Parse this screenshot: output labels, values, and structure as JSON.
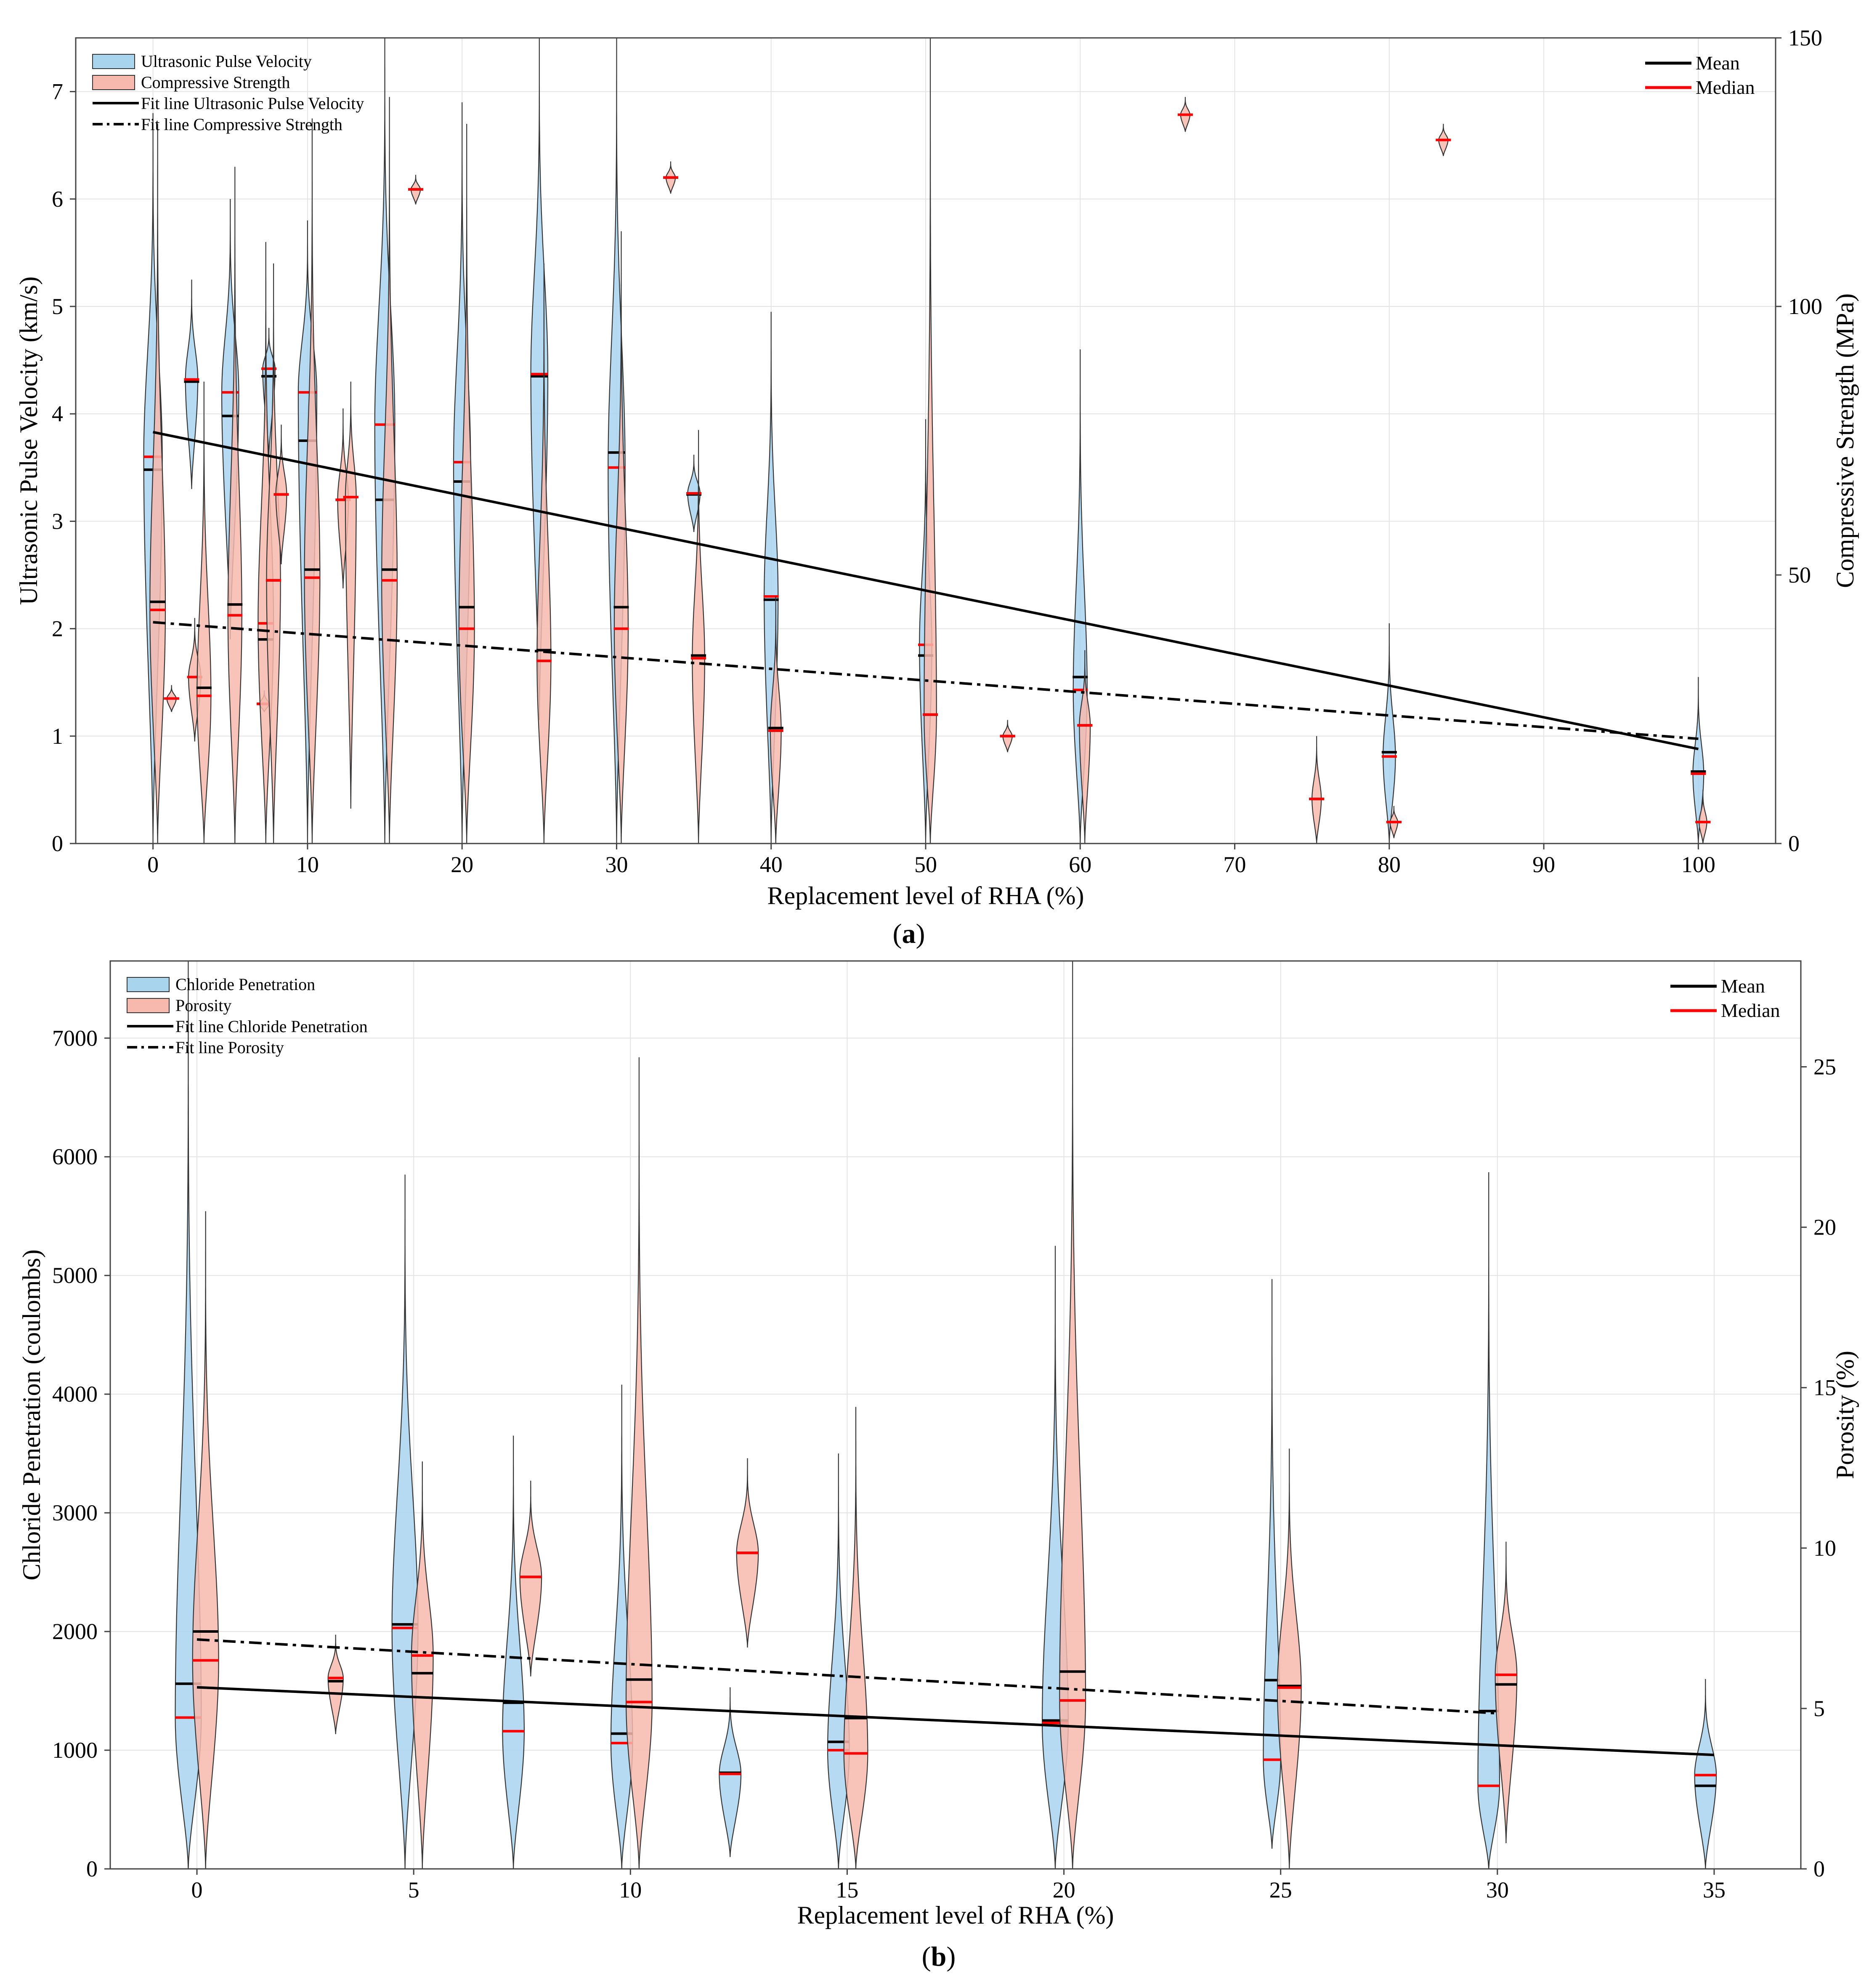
{
  "colors": {
    "blue": "#a9d4ee",
    "red": "#f7b9ad",
    "mean": "#000000",
    "median": "#ff0000",
    "outline": "#333333"
  },
  "chart_data": [
    {
      "type": "violin",
      "panel_label": "a",
      "xlabel": "Replacement level of RHA (%)",
      "ylabel_left": "Ultrasonic Pulse Velocity (km/s)",
      "ylabel_right": "Compressive Strength (MPa)",
      "xlim": [
        -5,
        105
      ],
      "xticks": [
        0,
        10,
        20,
        30,
        40,
        50,
        60,
        70,
        80,
        90,
        100
      ],
      "ylim_left": [
        0,
        7.5
      ],
      "yticks_left": [
        0,
        1,
        2,
        3,
        4,
        5,
        6,
        7
      ],
      "ylim_right": [
        0,
        150
      ],
      "yticks_right": [
        0,
        50,
        100,
        150
      ],
      "legend_left": [
        "Ultrasonic Pulse Velocity",
        "Compressive Strength",
        "Fit line Ultrasonic Pulse Velocity",
        "Fit line Compressive Strength"
      ],
      "legend_right": [
        "Mean",
        "Median"
      ],
      "series": [
        {
          "name": "Ultrasonic Pulse Velocity",
          "axis": "left",
          "color": "blue",
          "violins": [
            {
              "x": 0,
              "min": 0,
              "max": 6.8,
              "mean": 3.48,
              "median": 3.6,
              "width": 1.2
            },
            {
              "x": 2.5,
              "min": 3.3,
              "max": 5.25,
              "mean": 4.3,
              "median": 4.32,
              "width": 0.8
            },
            {
              "x": 5,
              "min": 1.9,
              "max": 6.0,
              "mean": 3.98,
              "median": 4.2,
              "width": 1.1
            },
            {
              "x": 7.5,
              "min": 3.6,
              "max": 4.8,
              "mean": 4.35,
              "median": 4.42,
              "width": 0.8
            },
            {
              "x": 10,
              "min": 0,
              "max": 5.8,
              "mean": 3.75,
              "median": 4.2,
              "width": 1.2
            },
            {
              "x": 15,
              "min": 0,
              "max": 7.5,
              "mean": 3.2,
              "median": 3.9,
              "width": 1.3
            },
            {
              "x": 20,
              "min": 0,
              "max": 6.9,
              "mean": 3.37,
              "median": 3.55,
              "width": 1.1
            },
            {
              "x": 25,
              "min": 1.15,
              "max": 7.5,
              "mean": 4.35,
              "median": 4.37,
              "width": 1.1
            },
            {
              "x": 30,
              "min": 0,
              "max": 7.5,
              "mean": 3.64,
              "median": 3.5,
              "width": 1.1
            },
            {
              "x": 35,
              "min": 2.9,
              "max": 3.62,
              "mean": 3.25,
              "median": 3.26,
              "width": 0.8
            },
            {
              "x": 40,
              "min": 0,
              "max": 4.95,
              "mean": 2.27,
              "median": 2.3,
              "width": 0.9
            },
            {
              "x": 50,
              "min": 0,
              "max": 3.95,
              "mean": 1.75,
              "median": 1.85,
              "width": 0.8
            },
            {
              "x": 60,
              "min": 0,
              "max": 4.6,
              "mean": 1.55,
              "median": 1.43,
              "width": 0.9
            },
            {
              "x": 80,
              "min": 0,
              "max": 2.05,
              "mean": 0.85,
              "median": 0.81,
              "width": 0.8
            },
            {
              "x": 100,
              "min": 0,
              "max": 1.55,
              "mean": 0.67,
              "median": 0.65,
              "width": 0.7
            }
          ]
        },
        {
          "name": "Compressive Strength",
          "axis": "right",
          "color": "red",
          "violins": [
            {
              "x": 0.3,
              "min": 0,
              "max": 134,
              "mean": 45,
              "median": 43.5,
              "width": 1.0
            },
            {
              "x": 1.2,
              "min": 24.5,
              "max": 29.5,
              "mean": 27,
              "median": 27,
              "width": 0.6
            },
            {
              "x": 2.7,
              "min": 19,
              "max": 42,
              "mean": 31,
              "median": 31,
              "width": 0.8
            },
            {
              "x": 3.3,
              "min": 0,
              "max": 86,
              "mean": 29,
              "median": 27.5,
              "width": 0.9
            },
            {
              "x": 5.3,
              "min": 0,
              "max": 126,
              "mean": 44.5,
              "median": 42.5,
              "width": 0.9
            },
            {
              "x": 7.2,
              "min": 24.5,
              "max": 28.5,
              "mean": 26,
              "median": 26,
              "width": 0.6
            },
            {
              "x": 7.3,
              "min": 0,
              "max": 112,
              "mean": 38,
              "median": 41,
              "width": 1.0
            },
            {
              "x": 7.8,
              "min": 0,
              "max": 108,
              "mean": 49,
              "median": 49,
              "width": 0.9
            },
            {
              "x": 8.3,
              "min": 52,
              "max": 78,
              "mean": 65,
              "median": 65,
              "width": 0.7
            },
            {
              "x": 10.3,
              "min": 0,
              "max": 135,
              "mean": 51,
              "median": 49.5,
              "width": 1.0
            },
            {
              "x": 12.3,
              "min": 47.5,
              "max": 81,
              "mean": 64,
              "median": 64,
              "width": 0.7
            },
            {
              "x": 12.8,
              "min": 6.5,
              "max": 86,
              "mean": 64.5,
              "median": 64.5,
              "width": 0.7
            },
            {
              "x": 15.3,
              "min": 0,
              "max": 139,
              "mean": 51,
              "median": 49,
              "width": 1.0
            },
            {
              "x": 17,
              "min": 119,
              "max": 124.5,
              "mean": 121.8,
              "median": 121.8,
              "width": 0.6
            },
            {
              "x": 20.3,
              "min": 0,
              "max": 134,
              "mean": 44,
              "median": 40,
              "width": 1.0
            },
            {
              "x": 25.3,
              "min": 0,
              "max": 108,
              "mean": 36,
              "median": 34,
              "width": 0.9
            },
            {
              "x": 30.3,
              "min": 0,
              "max": 114,
              "mean": 44,
              "median": 40,
              "width": 0.9
            },
            {
              "x": 33.5,
              "min": 121,
              "max": 127,
              "mean": 124,
              "median": 124,
              "width": 0.6
            },
            {
              "x": 35.3,
              "min": 0,
              "max": 77,
              "mean": 35,
              "median": 34.5,
              "width": 0.8
            },
            {
              "x": 40.3,
              "min": 0,
              "max": 46,
              "mean": 21.5,
              "median": 21,
              "width": 0.7
            },
            {
              "x": 50.3,
              "min": 0,
              "max": 150,
              "mean": 24,
              "median": 24,
              "width": 0.8
            },
            {
              "x": 55.3,
              "min": 17,
              "max": 23,
              "mean": 20,
              "median": 20,
              "width": 0.6
            },
            {
              "x": 60.3,
              "min": 0,
              "max": 36,
              "mean": 22,
              "median": 22,
              "width": 0.7
            },
            {
              "x": 66.8,
              "min": 132.5,
              "max": 139,
              "mean": 135.7,
              "median": 135.7,
              "width": 0.6
            },
            {
              "x": 75.3,
              "min": 0,
              "max": 20,
              "mean": 8.3,
              "median": 8.3,
              "width": 0.6
            },
            {
              "x": 80.3,
              "min": 1,
              "max": 7,
              "mean": 4,
              "median": 4,
              "width": 0.5
            },
            {
              "x": 83.5,
              "min": 128,
              "max": 134,
              "mean": 131,
              "median": 131,
              "width": 0.6
            },
            {
              "x": 100.3,
              "min": 0,
              "max": 10,
              "mean": 4,
              "median": 4,
              "width": 0.5
            }
          ]
        }
      ],
      "fit_lines": [
        {
          "name": "Fit line Ultrasonic Pulse Velocity",
          "axis": "left",
          "style": "solid",
          "x": [
            0,
            100
          ],
          "y": [
            3.83,
            0.88
          ]
        },
        {
          "name": "Fit line Compressive Strength",
          "axis": "right",
          "style": "dashdot",
          "x": [
            0,
            100
          ],
          "y": [
            41.2,
            19.5
          ]
        }
      ]
    },
    {
      "type": "violin",
      "panel_label": "b",
      "xlabel": "Replacement level of RHA (%)",
      "ylabel_left": "Chloride Penetration (coulombs)",
      "ylabel_right": "Porosity (%)",
      "xlim": [
        -2,
        37
      ],
      "xticks": [
        0,
        5,
        10,
        15,
        20,
        25,
        30,
        35
      ],
      "ylim_left": [
        0,
        7650
      ],
      "yticks_left": [
        0,
        1000,
        2000,
        3000,
        4000,
        5000,
        6000,
        7000
      ],
      "ylim_right": [
        0,
        28.3
      ],
      "yticks_right": [
        0,
        5,
        10,
        15,
        20,
        25
      ],
      "legend_left": [
        "Chloride Penetration",
        "Porosity",
        "Fit line Chloride Penetration",
        "Fit line Porosity"
      ],
      "legend_right": [
        "Mean",
        "Median"
      ],
      "series": [
        {
          "name": "Chloride Penetration",
          "axis": "left",
          "color": "blue",
          "violins": [
            {
              "x": -0.2,
              "min": 0,
              "max": 7650,
              "mean": 1560,
              "median": 1275,
              "width": 0.6
            },
            {
              "x": 4.8,
              "min": 0,
              "max": 5850,
              "mean": 2060,
              "median": 2030,
              "width": 0.6
            },
            {
              "x": 7.3,
              "min": 0,
              "max": 3650,
              "mean": 1400,
              "median": 1160,
              "width": 0.5
            },
            {
              "x": 9.8,
              "min": 0,
              "max": 4080,
              "mean": 1140,
              "median": 1060,
              "width": 0.5
            },
            {
              "x": 12.3,
              "min": 100,
              "max": 1530,
              "mean": 810,
              "median": 800,
              "width": 0.5
            },
            {
              "x": 14.8,
              "min": 0,
              "max": 3500,
              "mean": 1070,
              "median": 1000,
              "width": 0.5
            },
            {
              "x": 19.8,
              "min": 0,
              "max": 5250,
              "mean": 1250,
              "median": 1230,
              "width": 0.6
            },
            {
              "x": 24.8,
              "min": 170,
              "max": 4970,
              "mean": 1590,
              "median": 920,
              "width": 0.4
            },
            {
              "x": 29.8,
              "min": 0,
              "max": 5870,
              "mean": 1330,
              "median": 700,
              "width": 0.5
            },
            {
              "x": 34.8,
              "min": 0,
              "max": 1600,
              "mean": 700,
              "median": 790,
              "width": 0.5
            }
          ]
        },
        {
          "name": "Porosity",
          "axis": "right",
          "color": "red",
          "violins": [
            {
              "x": 0.2,
              "min": 0,
              "max": 20.5,
              "mean": 7.4,
              "median": 6.5,
              "width": 0.6
            },
            {
              "x": 3.2,
              "min": 4.2,
              "max": 7.3,
              "mean": 5.85,
              "median": 5.95,
              "width": 0.35
            },
            {
              "x": 5.2,
              "min": 0,
              "max": 12.7,
              "mean": 6.1,
              "median": 6.65,
              "width": 0.5
            },
            {
              "x": 7.7,
              "min": 6.0,
              "max": 12.1,
              "mean": 9.1,
              "median": 9.1,
              "width": 0.5
            },
            {
              "x": 10.2,
              "min": 0,
              "max": 25.3,
              "mean": 5.9,
              "median": 5.2,
              "width": 0.6
            },
            {
              "x": 12.7,
              "min": 6.9,
              "max": 12.8,
              "mean": 9.85,
              "median": 9.85,
              "width": 0.5
            },
            {
              "x": 15.2,
              "min": 0,
              "max": 14.4,
              "mean": 4.7,
              "median": 3.6,
              "width": 0.55
            },
            {
              "x": 20.2,
              "min": 0,
              "max": 28.3,
              "mean": 6.15,
              "median": 5.25,
              "width": 0.6
            },
            {
              "x": 25.2,
              "min": 0,
              "max": 13.1,
              "mean": 5.7,
              "median": 5.65,
              "width": 0.55
            },
            {
              "x": 30.2,
              "min": 0.8,
              "max": 10.2,
              "mean": 5.75,
              "median": 6.05,
              "width": 0.5
            }
          ]
        }
      ],
      "fit_lines": [
        {
          "name": "Fit line Chloride Penetration",
          "axis": "left",
          "style": "solid",
          "x": [
            0,
            35
          ],
          "y": [
            1530,
            960
          ]
        },
        {
          "name": "Fit line Porosity",
          "axis": "right",
          "style": "dashdot",
          "x": [
            0,
            30
          ],
          "y": [
            7.15,
            4.85
          ]
        }
      ]
    }
  ]
}
